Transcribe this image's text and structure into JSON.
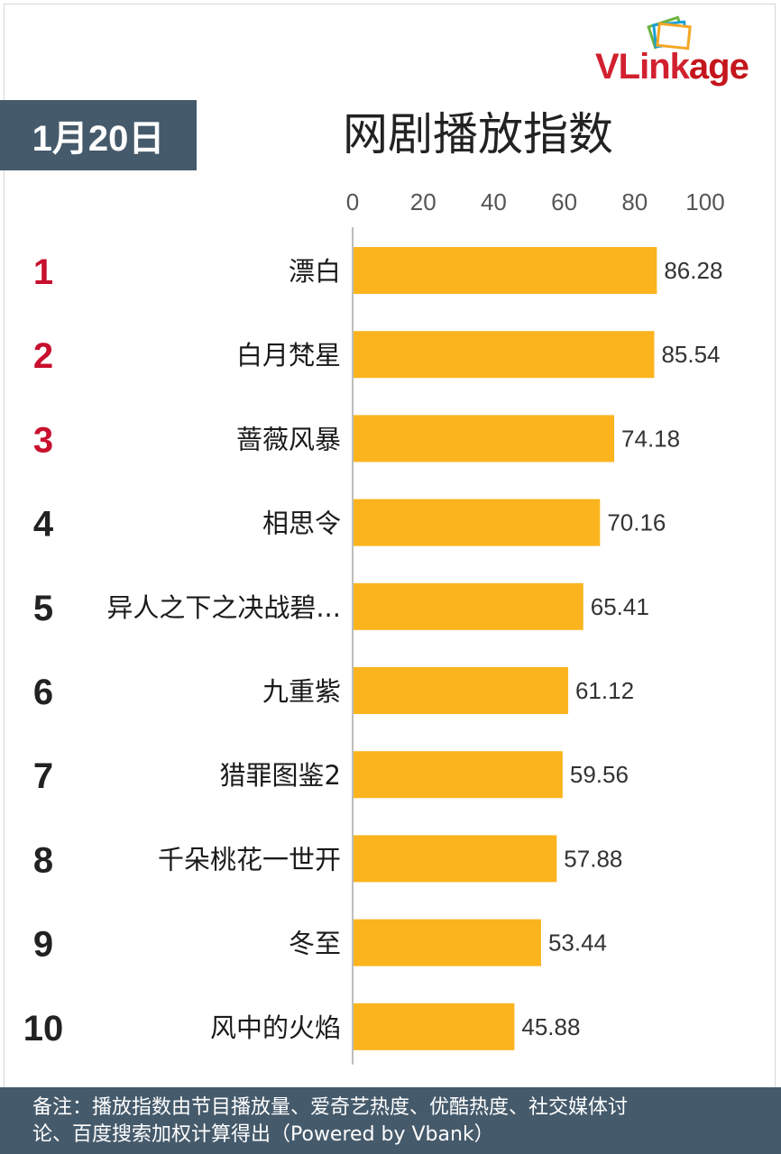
{
  "logo": {
    "text_prefix": "VLink",
    "text_suffix": "age"
  },
  "date_badge": "1月20日",
  "chart_data": {
    "type": "bar",
    "orientation": "horizontal",
    "title": "网剧播放指数",
    "xlim": [
      0,
      100
    ],
    "xticks": [
      0,
      20,
      40,
      60,
      80,
      100
    ],
    "bar_color": "#fbb41e",
    "top3_rank_color": "#c8102e",
    "rank_color": "#222222",
    "grid": false,
    "ranks": [
      "1",
      "2",
      "3",
      "4",
      "5",
      "6",
      "7",
      "8",
      "9",
      "10"
    ],
    "categories": [
      "漂白",
      "白月梵星",
      "蔷薇风暴",
      "相思令",
      "异人之下之决战碧...",
      "九重紫",
      "猎罪图鉴2",
      "千朵桃花一世开",
      "冬至",
      "风中的火焰"
    ],
    "values": [
      86.28,
      85.54,
      74.18,
      70.16,
      65.41,
      61.12,
      59.56,
      57.88,
      53.44,
      45.88
    ],
    "value_labels": [
      "86.28",
      "85.54",
      "74.18",
      "70.16",
      "65.41",
      "61.12",
      "59.56",
      "57.88",
      "53.44",
      "45.88"
    ]
  },
  "footer": {
    "line1": "备注：播放指数由节目播放量、爱奇艺热度、优酷热度、社交媒体讨",
    "line2": "论、百度搜索加权计算得出（Powered by Vbank）"
  }
}
